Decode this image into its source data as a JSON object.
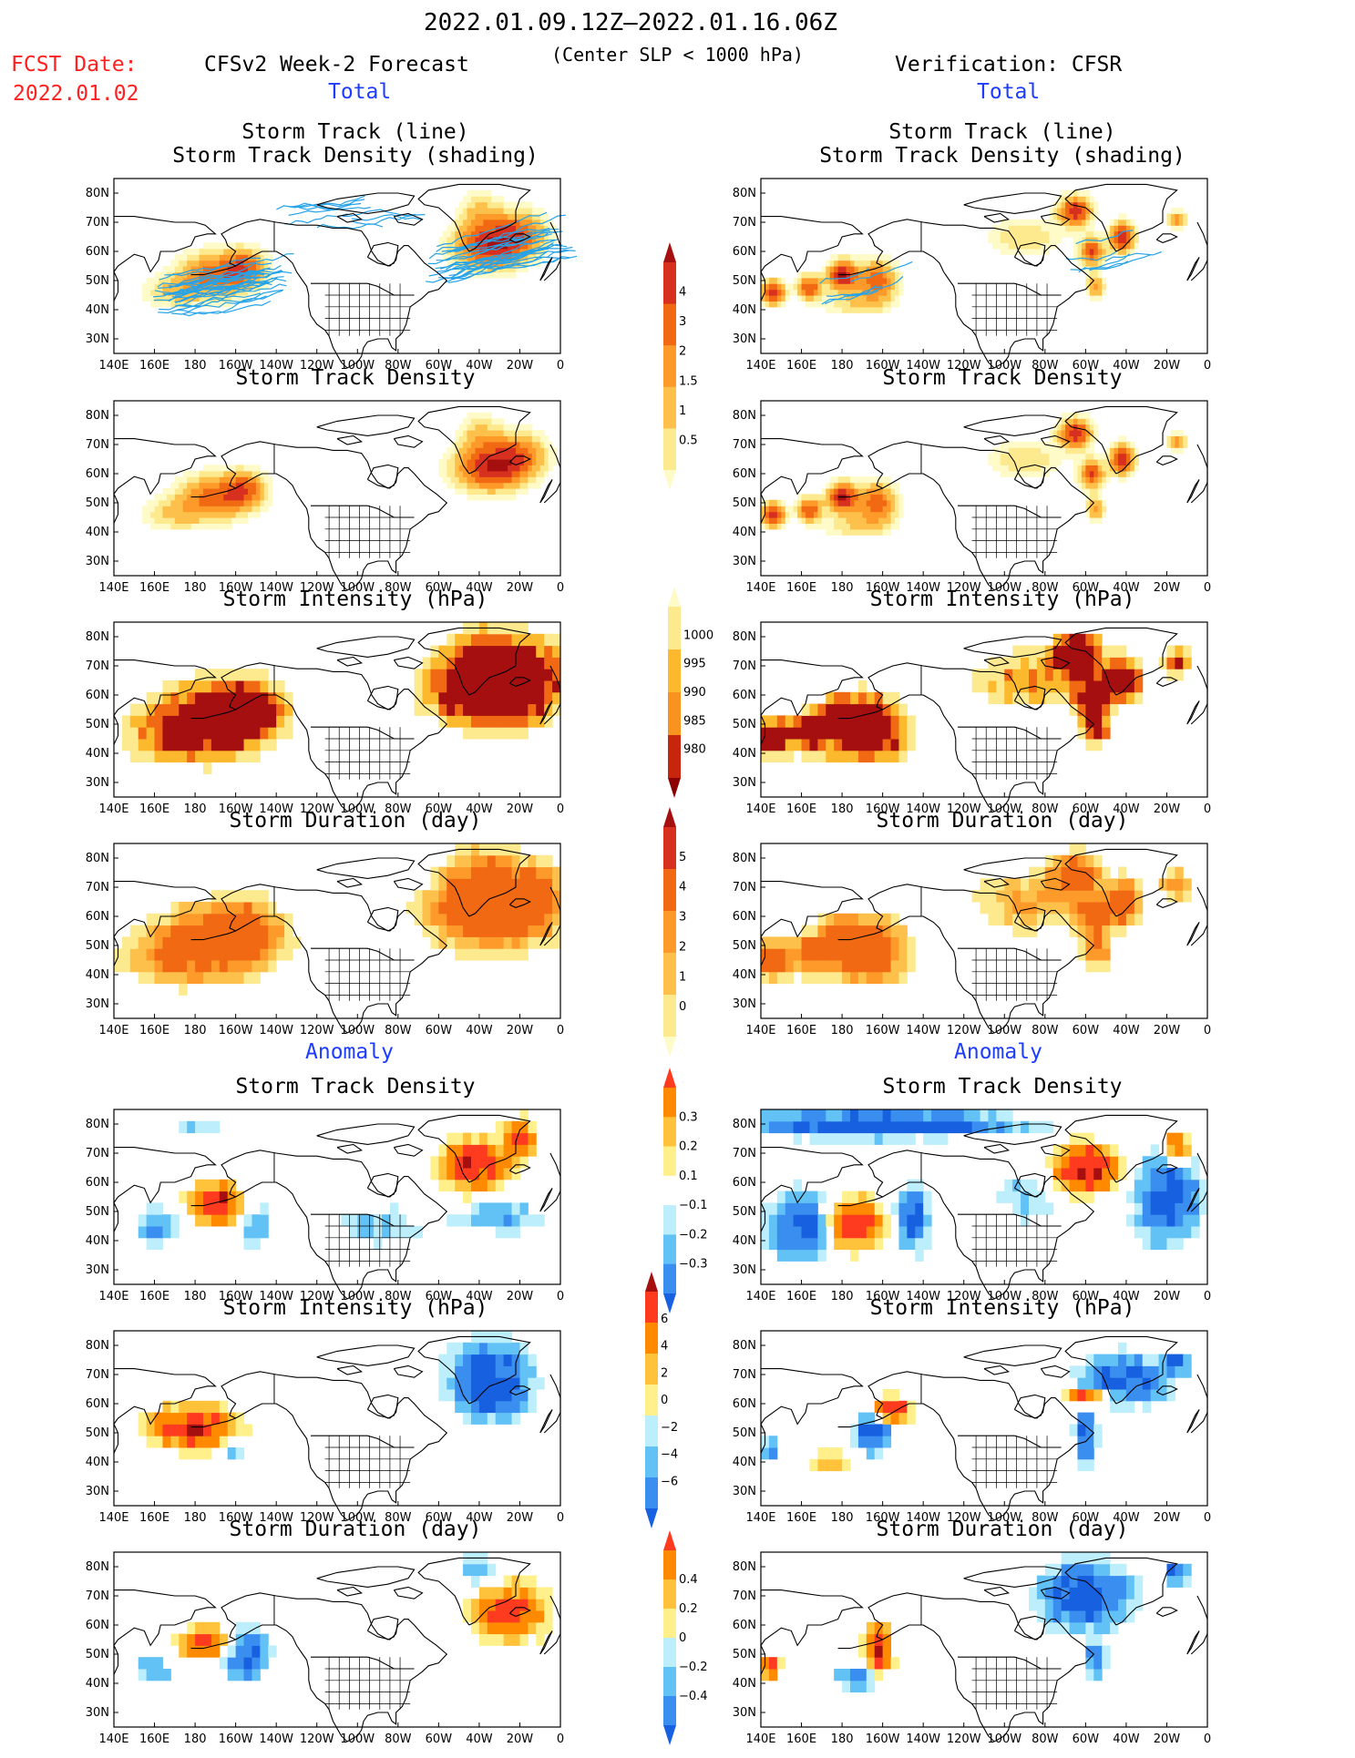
{
  "header": {
    "date_range": "2022.01.09.12Z—2022.01.16.06Z",
    "subtitle": "(Center SLP < 1000 hPa)",
    "fcst_label": "FCST Date:",
    "fcst_date": "2022.01.02",
    "forecast_title": "CFSv2 Week-2 Forecast",
    "verification_title": "Verification: CFSR",
    "total_left": "Total",
    "total_right": "Total",
    "anomaly_left": "Anomaly",
    "anomaly_right": "Anomaly"
  },
  "panels": {
    "p1_title_line1": "Storm Track (line)",
    "p1_title_line2": "Storm Track Density (shading)",
    "density": "Storm Track Density",
    "intensity": "Storm Intensity (hPa)",
    "duration": "Storm Duration (day)"
  },
  "axes": {
    "lat_labels": [
      "80N",
      "70N",
      "60N",
      "50N",
      "40N",
      "30N"
    ],
    "lon_labels": [
      "140E",
      "160E",
      "180",
      "160W",
      "140W",
      "120W",
      "100W",
      "80W",
      "60W",
      "40W",
      "20W",
      "0"
    ]
  },
  "colorbars": [
    {
      "id": "density",
      "labels": [
        "4",
        "3",
        "2",
        "1.5",
        "1",
        "0.5"
      ],
      "colors": [
        "#a50f0f",
        "#d7301f",
        "#f16913",
        "#fd9a2a",
        "#fdc04a",
        "#fde98e",
        "#fffbc8"
      ],
      "bottom_open": false
    },
    {
      "id": "intensity",
      "labels": [
        "1000",
        "995",
        "990",
        "985",
        "980"
      ],
      "colors": [
        "#fffbc8",
        "#fde98e",
        "#fdb92d",
        "#f7931e",
        "#c8250d",
        "#8b0000"
      ],
      "top_open": false
    },
    {
      "id": "duration",
      "labels": [
        "5",
        "4",
        "3",
        "2",
        "1",
        "0"
      ],
      "colors": [
        "#a50f0f",
        "#d7301f",
        "#f16913",
        "#fd9a2a",
        "#fdc04a",
        "#fde98e",
        "#fffbc8"
      ],
      "bottom_open": false
    },
    {
      "id": "anom_density",
      "labels": [
        "0.3",
        "0.2",
        "0.1",
        "−0.1",
        "−0.2",
        "−0.3"
      ],
      "colors": [
        "#ff3b1f",
        "#ff8a00",
        "#ffc23a",
        "#fff08c",
        "#ffffff",
        "#bdeefc",
        "#62c1f5",
        "#3a8ef0",
        "#1760e0"
      ]
    },
    {
      "id": "anom_intensity",
      "labels": [
        "6",
        "4",
        "2",
        "0",
        "−2",
        "−4",
        "−6"
      ],
      "colors": [
        "#a50f0f",
        "#ff3b1f",
        "#ff8a00",
        "#ffc23a",
        "#fff08c",
        "#bdeefc",
        "#62c1f5",
        "#3a8ef0",
        "#1760e0"
      ]
    },
    {
      "id": "anom_duration",
      "labels": [
        "0.4",
        "0.2",
        "0",
        "−0.2",
        "−0.4"
      ],
      "colors": [
        "#ff3b1f",
        "#ff8a00",
        "#ffc23a",
        "#fff08c",
        "#bdeefc",
        "#62c1f5",
        "#3a8ef0",
        "#1760e0"
      ]
    }
  ],
  "colors": {
    "track_line": "#26a3e8",
    "label_red": "#ff2020",
    "label_blue": "#1c3cff"
  }
}
